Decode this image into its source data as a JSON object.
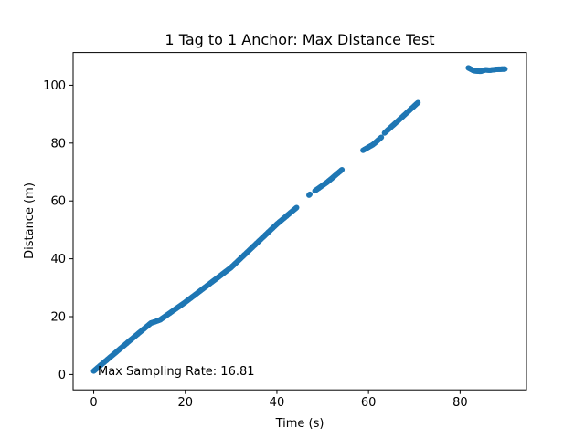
{
  "chart_data": {
    "type": "scatter",
    "title": "1 Tag to 1 Anchor: Max Distance Test",
    "xlabel": "Time (s)",
    "ylabel": "Distance (m)",
    "xlim": [
      -4.5,
      94.5
    ],
    "ylim": [
      -5.3,
      111.3
    ],
    "xticks": [
      0,
      20,
      40,
      60,
      80
    ],
    "yticks": [
      0,
      20,
      40,
      60,
      80,
      100
    ],
    "xtick_labels": [
      "0",
      "20",
      "40",
      "60",
      "80"
    ],
    "ytick_labels": [
      "0",
      "20",
      "40",
      "60",
      "80",
      "100"
    ],
    "grid": false,
    "marker_color": "#1f77b4",
    "annotation": "Max Sampling Rate: 16.81",
    "series": [
      {
        "segments": [
          {
            "x0": 0.0,
            "x1": 12.5,
            "points": [
              [
                0.0,
                1.2
              ],
              [
                3.0,
                5.2
              ],
              [
                6.0,
                9.2
              ],
              [
                9.0,
                13.2
              ],
              [
                12.5,
                17.8
              ]
            ]
          },
          {
            "x0": 12.5,
            "x1": 14.5,
            "points": [
              [
                12.5,
                17.8
              ],
              [
                13.5,
                18.3
              ],
              [
                14.5,
                18.9
              ]
            ]
          },
          {
            "x0": 14.5,
            "x1": 44.3,
            "points": [
              [
                14.5,
                18.9
              ],
              [
                20.0,
                25.0
              ],
              [
                30.0,
                37.0
              ],
              [
                40.0,
                52.0
              ],
              [
                44.3,
                57.7
              ]
            ]
          },
          {
            "x0": 47.0,
            "x1": 47.2,
            "points": [
              [
                47.0,
                62.0
              ],
              [
                47.2,
                62.3
              ]
            ]
          },
          {
            "x0": 48.3,
            "x1": 54.2,
            "points": [
              [
                48.3,
                63.5
              ],
              [
                51.0,
                66.5
              ],
              [
                54.2,
                70.8
              ]
            ]
          },
          {
            "x0": 58.8,
            "x1": 62.8,
            "points": [
              [
                58.8,
                77.5
              ],
              [
                61.0,
                79.5
              ],
              [
                62.8,
                82.0
              ]
            ]
          },
          {
            "x0": 63.5,
            "x1": 70.8,
            "points": [
              [
                63.5,
                83.5
              ],
              [
                67.0,
                88.5
              ],
              [
                70.8,
                94.0
              ]
            ]
          },
          {
            "x0": 81.8,
            "x1": 89.8,
            "points": [
              [
                81.8,
                106.0
              ],
              [
                83.0,
                105.0
              ],
              [
                84.5,
                104.8
              ],
              [
                85.5,
                105.3
              ],
              [
                86.5,
                105.2
              ],
              [
                88.0,
                105.5
              ],
              [
                89.8,
                105.6
              ]
            ]
          }
        ]
      }
    ]
  }
}
